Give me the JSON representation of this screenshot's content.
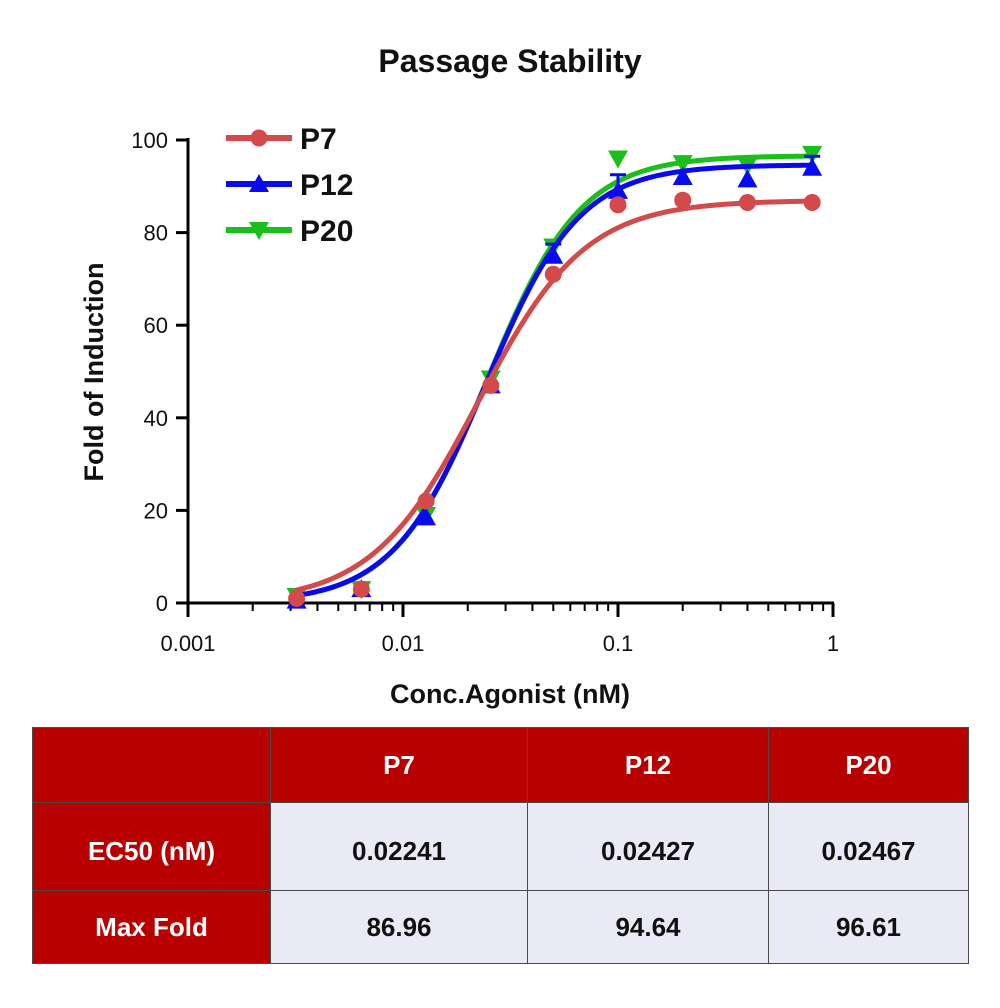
{
  "chart_data": {
    "type": "line",
    "title": "Passage Stability",
    "xlabel": "Conc.Agonist (nM)",
    "ylabel": "Fold of Induction",
    "xscale": "log",
    "xlim": [
      0.001,
      1
    ],
    "ylim": [
      0,
      100
    ],
    "x_ticks": [
      0.001,
      0.01,
      0.1,
      1
    ],
    "x_tick_labels": [
      "0.001",
      "0.01",
      "0.1",
      "1"
    ],
    "y_ticks": [
      0,
      20,
      40,
      60,
      80,
      100
    ],
    "y_tick_labels": [
      "0",
      "20",
      "40",
      "60",
      "80",
      "100"
    ],
    "legend_position": "top-left",
    "x": [
      0.0032,
      0.0064,
      0.0128,
      0.0256,
      0.05,
      0.1,
      0.2,
      0.4,
      0.8
    ],
    "series": [
      {
        "name": "P20",
        "color": "#1bbf1b",
        "marker": "triangle-down",
        "values": [
          1.5,
          3,
          19,
          48.5,
          77,
          96,
          95,
          94.5,
          97
        ],
        "errors": [
          0,
          0,
          0,
          0,
          0,
          0,
          0,
          0,
          0
        ],
        "fit": {
          "bottom": 0,
          "top": 96.61,
          "ec50": 0.02467,
          "hill": 2.0
        }
      },
      {
        "name": "P12",
        "color": "#0a0aef",
        "marker": "triangle-up",
        "values": [
          0.5,
          3,
          18.5,
          47,
          75,
          89,
          92,
          91.5,
          94
        ],
        "errors": [
          0,
          0,
          0,
          0,
          2.5,
          3.5,
          0,
          0,
          2.5
        ],
        "fit": {
          "bottom": 0,
          "top": 94.64,
          "ec50": 0.02427,
          "hill": 2.0
        }
      },
      {
        "name": "P7",
        "color": "#d24a4a",
        "marker": "circle",
        "values": [
          1,
          3,
          22,
          47,
          71,
          86,
          87,
          86.5,
          86.5
        ],
        "errors": [
          0,
          0,
          0,
          0,
          0,
          0,
          0,
          0,
          0
        ],
        "fit": {
          "bottom": 0,
          "top": 86.96,
          "ec50": 0.02241,
          "hill": 1.75
        }
      }
    ],
    "legend_order": [
      "P7",
      "P12",
      "P20"
    ]
  },
  "table": {
    "header": [
      "",
      "P7",
      "P12",
      "P20"
    ],
    "rows": [
      {
        "label": "EC50 (nM)",
        "values": [
          "0.02241",
          "0.02427",
          "0.02467"
        ]
      },
      {
        "label": "Max Fold",
        "values": [
          "86.96",
          "94.64",
          "96.61"
        ]
      }
    ],
    "colors": {
      "header_bg": "#b90000",
      "header_text": "#ffffff",
      "cell_bg": "#e9eaf5"
    }
  }
}
